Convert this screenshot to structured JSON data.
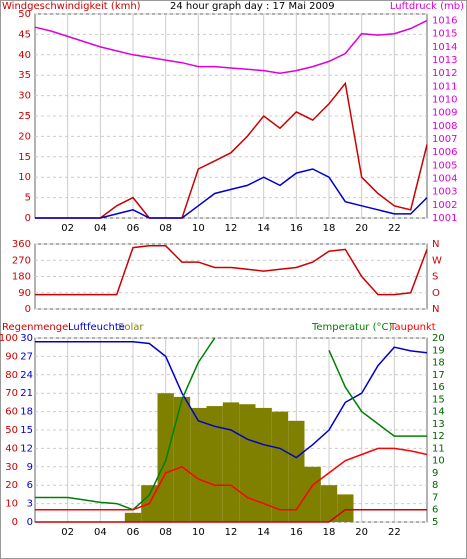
{
  "chart_data": [
    {
      "type": "line",
      "title": "24 hour graph day : 17 Mai 2009",
      "ylabel": "Windgeschwindigkeit (kmh)",
      "ylabel_color": "#cc0000",
      "y2label": "Luftdruck (mb)",
      "y2label_color": "#dd00dd",
      "x": [
        0,
        1,
        2,
        3,
        4,
        5,
        6,
        7,
        8,
        9,
        10,
        11,
        12,
        13,
        14,
        15,
        16,
        17,
        18,
        19,
        20,
        21,
        22,
        23,
        24
      ],
      "xlim": [
        0,
        24
      ],
      "xticks": [
        {
          "value": 2,
          "label": "02"
        },
        {
          "value": 4,
          "label": "04"
        },
        {
          "value": 6,
          "label": "06"
        },
        {
          "value": 8,
          "label": "08"
        },
        {
          "value": 10,
          "label": "10"
        },
        {
          "value": 12,
          "label": "12"
        },
        {
          "value": 14,
          "label": "14"
        },
        {
          "value": 16,
          "label": "16"
        },
        {
          "value": 18,
          "label": "18"
        },
        {
          "value": 20,
          "label": "20"
        },
        {
          "value": 22,
          "label": "22"
        }
      ],
      "ylim": [
        0,
        50
      ],
      "yticks": [
        0,
        5,
        10,
        15,
        20,
        25,
        30,
        35,
        40,
        45,
        50
      ],
      "ytick_color": "#cc0000",
      "y2lim": [
        1001,
        1016.5
      ],
      "y2ticks": [
        1001,
        1002,
        1003,
        1004,
        1005,
        1006,
        1007,
        1008,
        1009,
        1010,
        1011,
        1012,
        1013,
        1014,
        1015,
        1016
      ],
      "y2tick_color": "#dd00dd",
      "grid": true,
      "series": [
        {
          "color": "#dd00dd",
          "axis": "y2",
          "values": [
            1015.5,
            1015.2,
            1014.8,
            1014.4,
            1014.0,
            1013.7,
            1013.4,
            1013.2,
            1013.0,
            1012.8,
            1012.5,
            1012.5,
            1012.4,
            1012.3,
            1012.2,
            1012.0,
            1012.2,
            1012.5,
            1012.9,
            1013.5,
            1015.0,
            1014.9,
            1015.0,
            1015.4,
            1016.0
          ]
        },
        {
          "color": "#cc0000",
          "values": [
            0,
            0,
            0,
            0,
            0,
            3,
            5,
            0,
            0,
            0,
            12,
            14,
            16,
            20,
            25,
            22,
            26,
            24,
            28,
            33,
            10,
            6,
            3,
            2,
            18
          ]
        },
        {
          "color": "#0000cc",
          "values": [
            0,
            0,
            0,
            0,
            0,
            1,
            2,
            0,
            0,
            0,
            3,
            6,
            7,
            8,
            10,
            8,
            11,
            12,
            10,
            4,
            3,
            2,
            1,
            1,
            5
          ]
        }
      ]
    },
    {
      "type": "line",
      "x": [
        0,
        1,
        2,
        3,
        4,
        5,
        6,
        7,
        8,
        9,
        10,
        11,
        12,
        13,
        14,
        15,
        16,
        17,
        18,
        19,
        20,
        21,
        22,
        23,
        24
      ],
      "xlim": [
        0,
        24
      ],
      "ylim": [
        0,
        360
      ],
      "yticks": [
        0,
        90,
        180,
        270,
        360
      ],
      "ytick_color": "#cc0000",
      "y2lim": [
        0,
        360
      ],
      "y2ticks": [
        {
          "value": 0,
          "label": "N"
        },
        {
          "value": 90,
          "label": "O"
        },
        {
          "value": 180,
          "label": "S"
        },
        {
          "value": 270,
          "label": "W"
        },
        {
          "value": 360,
          "label": "N"
        }
      ],
      "y2tick_color": "#cc0000",
      "grid": true,
      "series": [
        {
          "color": "#cc0000",
          "values": [
            80,
            80,
            80,
            80,
            80,
            80,
            340,
            350,
            350,
            260,
            260,
            230,
            230,
            220,
            210,
            220,
            230,
            260,
            320,
            330,
            180,
            80,
            80,
            90,
            330
          ]
        }
      ]
    },
    {
      "type": "line",
      "x": [
        0,
        1,
        2,
        3,
        4,
        5,
        6,
        7,
        8,
        9,
        10,
        11,
        12,
        13,
        14,
        15,
        16,
        17,
        18,
        19,
        20,
        21,
        22,
        23,
        24
      ],
      "xlim": [
        0,
        24
      ],
      "xticks": [
        {
          "value": 2,
          "label": "02"
        },
        {
          "value": 4,
          "label": "04"
        },
        {
          "value": 6,
          "label": "06"
        },
        {
          "value": 8,
          "label": "08"
        },
        {
          "value": 10,
          "label": "10"
        },
        {
          "value": 12,
          "label": "12"
        },
        {
          "value": 14,
          "label": "14"
        },
        {
          "value": 16,
          "label": "16"
        },
        {
          "value": 18,
          "label": "18"
        },
        {
          "value": 20,
          "label": "20"
        },
        {
          "value": 22,
          "label": "22"
        }
      ],
      "ylim": [
        0,
        100
      ],
      "yticks": [
        0,
        10,
        20,
        30,
        40,
        50,
        60,
        70,
        80,
        90,
        100
      ],
      "ytick_color": "#cc0000",
      "y3lim": [
        0,
        30
      ],
      "y3ticks": [
        0,
        3,
        6,
        9,
        12,
        15,
        18,
        21,
        24,
        27,
        30
      ],
      "y3tick_color": "#0000cc",
      "y2lim": [
        5,
        20
      ],
      "y2ticks": [
        5,
        6,
        7,
        8,
        9,
        10,
        11,
        12,
        13,
        14,
        15,
        16,
        17,
        18,
        19,
        20
      ],
      "y2tick_color": "#006600",
      "grid": true,
      "series": [
        {
          "name": "Solar",
          "color": "#808000",
          "mark": "bar",
          "values": [
            0,
            0,
            0,
            0,
            0,
            0,
            5,
            20,
            70,
            68,
            62,
            63,
            65,
            64,
            62,
            60,
            55,
            30,
            20,
            15,
            0,
            0,
            0,
            0,
            0
          ]
        },
        {
          "name": "Regenmenge",
          "color": "#cc0000",
          "axis": "y3",
          "values": [
            0,
            0,
            0,
            0,
            0,
            0,
            0,
            0,
            0,
            0,
            0,
            0,
            0,
            0,
            0,
            0,
            0,
            0,
            0,
            2,
            2,
            2,
            2,
            2,
            2
          ]
        },
        {
          "name": "Luftfeuchte",
          "color": "#0000cc",
          "values": [
            98,
            98,
            98,
            98,
            98,
            98,
            98,
            97,
            90,
            70,
            55,
            52,
            50,
            45,
            42,
            40,
            35,
            42,
            50,
            65,
            70,
            85,
            95,
            93,
            92
          ]
        },
        {
          "name": "Temperatur (°C)",
          "color": "#008000",
          "axis": "y2",
          "values": [
            7,
            7,
            7,
            6.8,
            6.6,
            6.5,
            6,
            7.2,
            10,
            15,
            18,
            20,
            null,
            null,
            null,
            null,
            null,
            null,
            19,
            16,
            14,
            13,
            12,
            12,
            12
          ]
        },
        {
          "name": "Taupunkt",
          "color": "#ff0000",
          "axis": "y2",
          "values": [
            6,
            6,
            6,
            6,
            6,
            6,
            6,
            6.5,
            9,
            9.5,
            8.5,
            8,
            8,
            7,
            6.5,
            6,
            6,
            8,
            9,
            10,
            10.5,
            11,
            11,
            10.8,
            10.5
          ]
        }
      ]
    }
  ]
}
